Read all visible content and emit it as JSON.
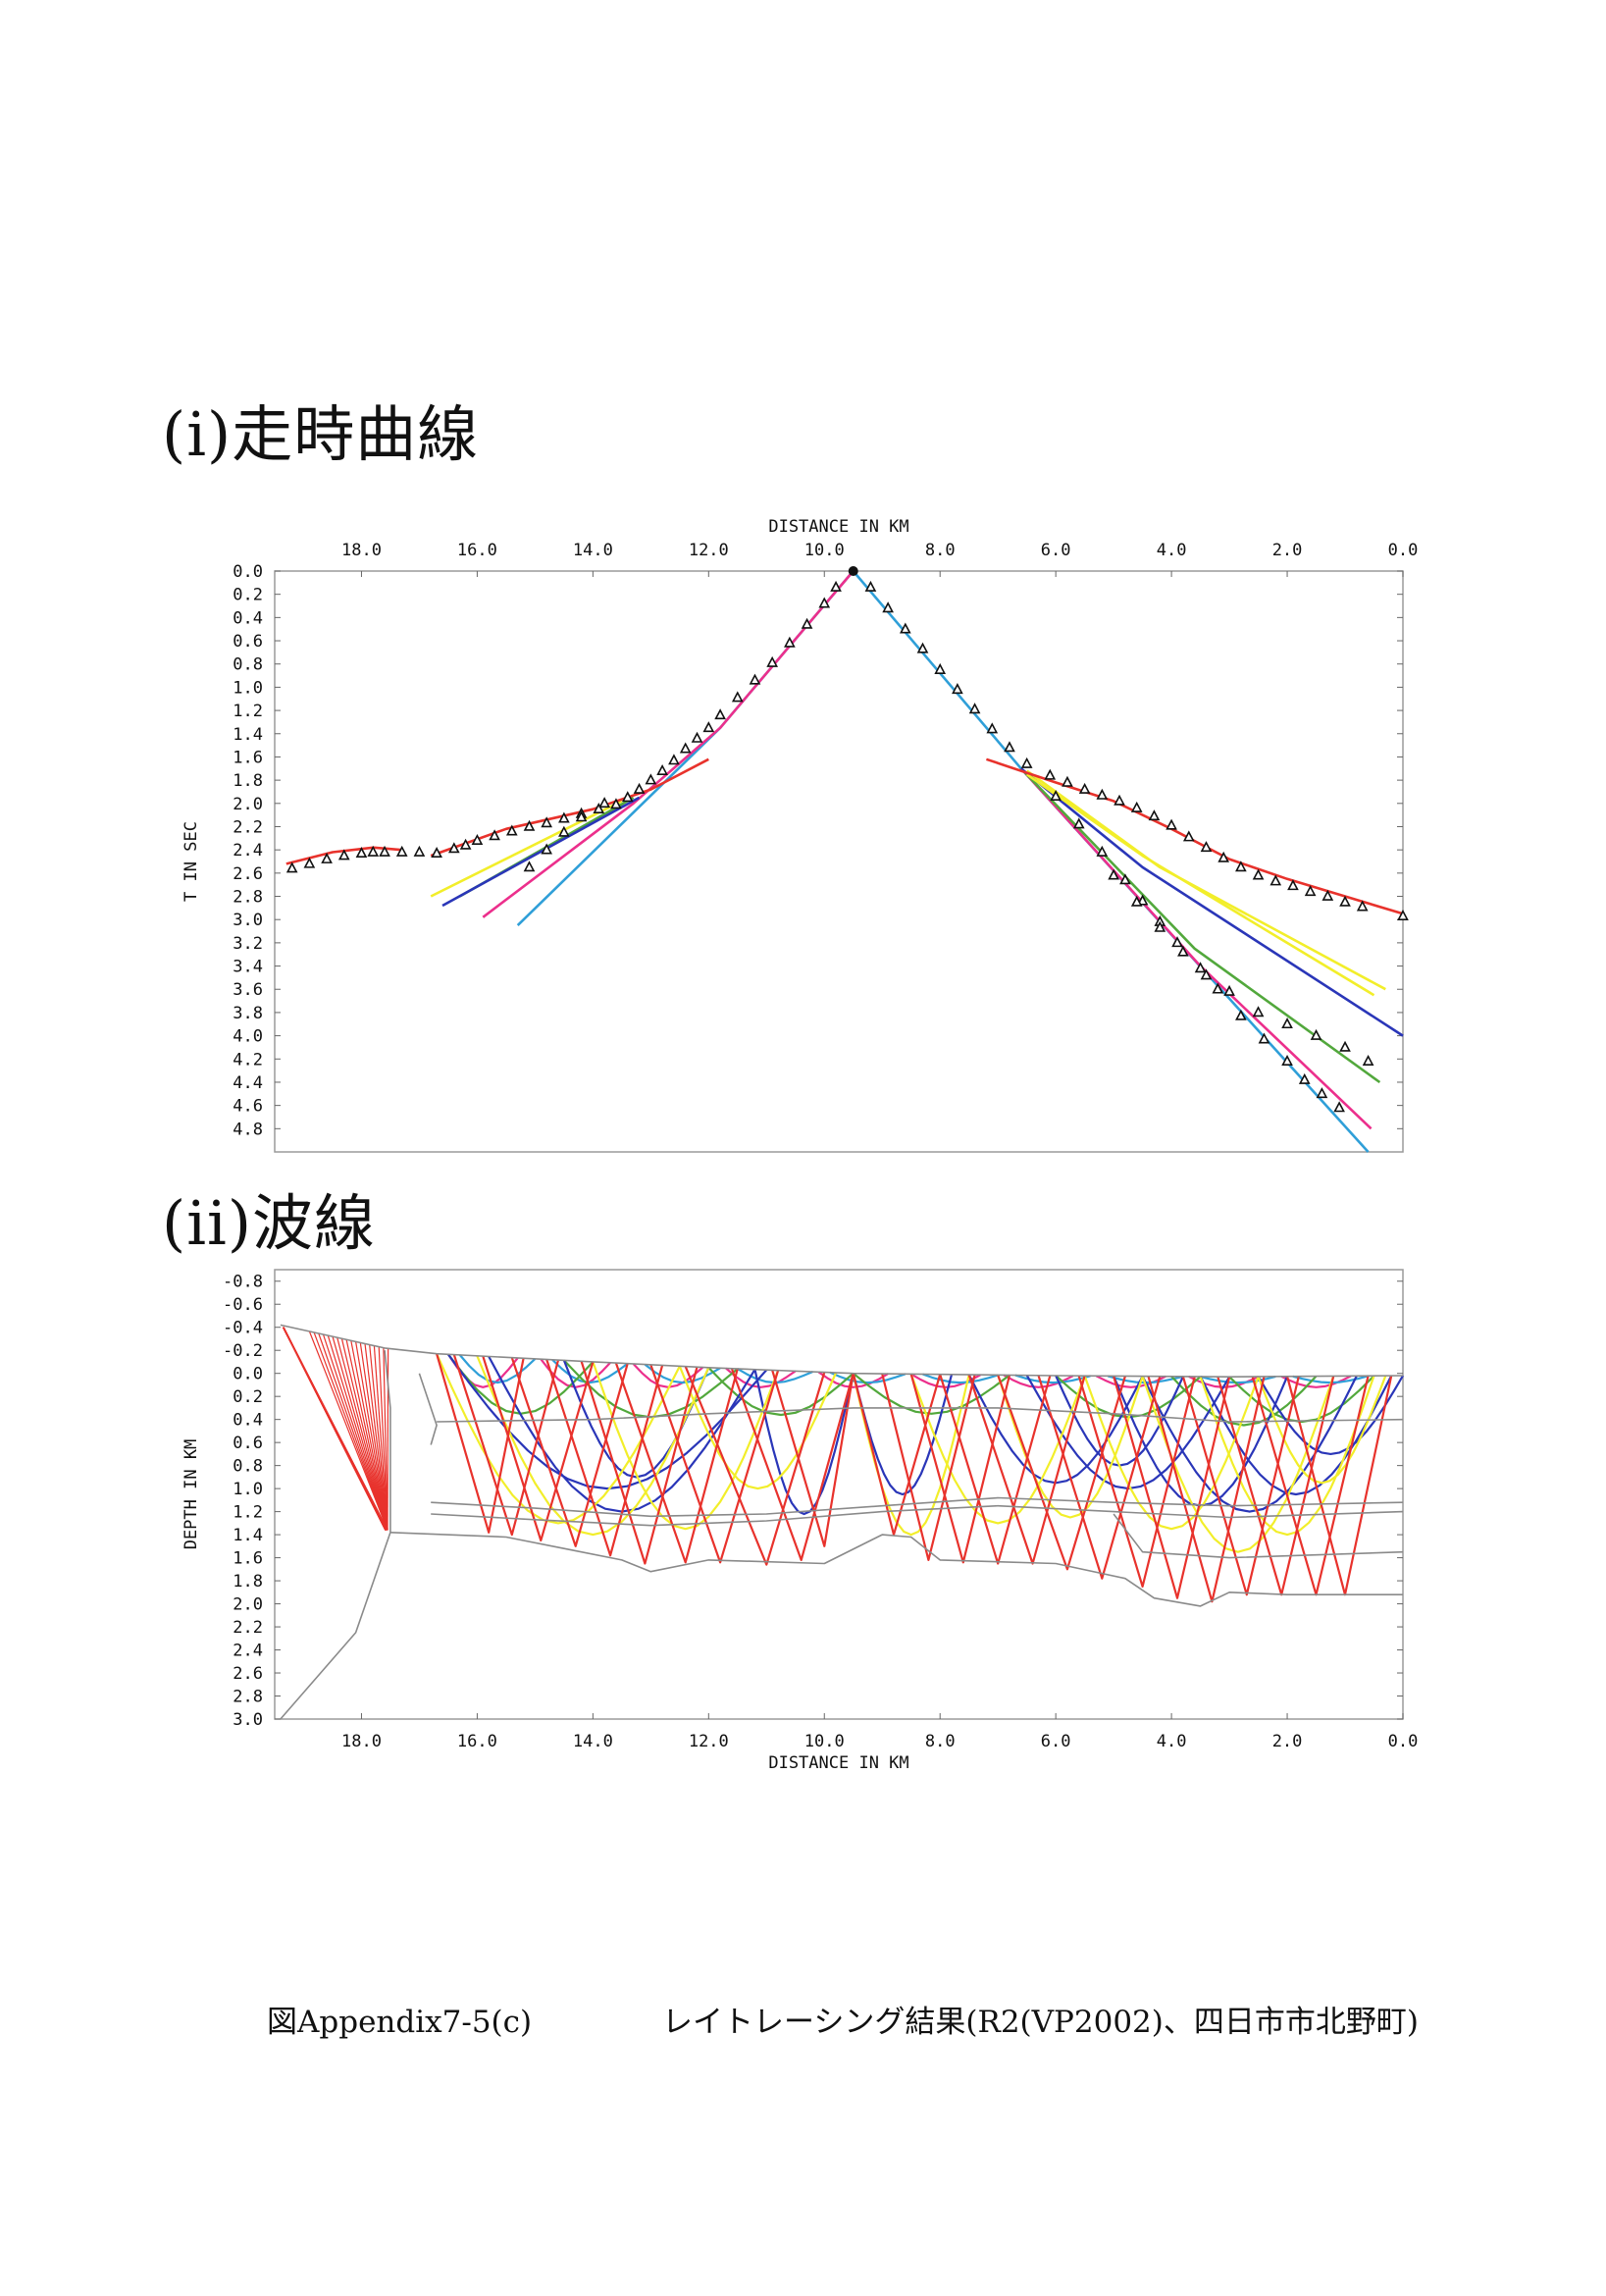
{
  "headings": {
    "section1": "(i)走時曲線",
    "section2": "(ii)波線"
  },
  "caption": {
    "label": "図Appendix7-5(c)",
    "text": "レイトレーシング結果(R2(VP2002)、四日市市北野町)"
  },
  "colors": {
    "red": "#e8322c",
    "yellow": "#f2ee2a",
    "green": "#52a83c",
    "blue": "#2a36b8",
    "magenta": "#ec2f8c",
    "cyan": "#2f9fd8",
    "boundary": "#8a8a8a",
    "frame": "#9a9a9a"
  },
  "chart_data": [
    {
      "type": "line",
      "name": "travel-time",
      "xlabel": "DISTANCE IN KM",
      "ylabel": "T IN SEC",
      "xlim": [
        19.5,
        0.0
      ],
      "ylim": [
        0.0,
        5.0
      ],
      "x_ticks": [
        "18.0",
        "16.0",
        "14.0",
        "12.0",
        "10.0",
        "8.0",
        "6.0",
        "4.0",
        "2.0",
        "0.0"
      ],
      "y_ticks": [
        "0.0",
        "0.2",
        "0.4",
        "0.6",
        "0.8",
        "1.0",
        "1.2",
        "1.4",
        "1.6",
        "1.8",
        "2.0",
        "2.2",
        "2.4",
        "2.6",
        "2.8",
        "3.0",
        "3.2",
        "3.4",
        "3.6",
        "3.8",
        "4.0",
        "4.2",
        "4.4",
        "4.6",
        "4.8"
      ],
      "shot_point": [
        9.5,
        0.0
      ],
      "series": [
        {
          "color": "cyan",
          "points": [
            [
              9.5,
              0.0
            ],
            [
              11.8,
              1.35
            ],
            [
              15.3,
              3.05
            ]
          ]
        },
        {
          "color": "cyan",
          "points": [
            [
              9.5,
              0.0
            ],
            [
              6.6,
              1.7
            ],
            [
              0.6,
              5.0
            ]
          ]
        },
        {
          "color": "magenta",
          "points": [
            [
              9.5,
              0.0
            ],
            [
              11.8,
              1.35
            ],
            [
              13.3,
              2.0
            ],
            [
              15.9,
              2.98
            ]
          ]
        },
        {
          "color": "magenta",
          "points": [
            [
              6.6,
              1.7
            ],
            [
              3.5,
              3.4
            ],
            [
              0.55,
              4.8
            ]
          ]
        },
        {
          "color": "green",
          "points": [
            [
              13.3,
              1.95
            ],
            [
              16.3,
              2.8
            ]
          ]
        },
        {
          "color": "green",
          "points": [
            [
              6.6,
              1.7
            ],
            [
              3.6,
              3.25
            ],
            [
              0.4,
              4.4
            ]
          ]
        },
        {
          "color": "blue",
          "points": [
            [
              13.2,
              1.95
            ],
            [
              16.6,
              2.88
            ]
          ]
        },
        {
          "color": "blue",
          "points": [
            [
              6.6,
              1.7
            ],
            [
              4.5,
              2.55
            ],
            [
              0.0,
              4.0
            ]
          ]
        },
        {
          "color": "yellow",
          "points": [
            [
              13.5,
              1.98
            ],
            [
              16.8,
              2.8
            ]
          ]
        },
        {
          "color": "yellow",
          "points": [
            [
              6.5,
              1.72
            ],
            [
              4.2,
              2.55
            ],
            [
              0.3,
              3.6
            ]
          ]
        },
        {
          "color": "yellow",
          "points": [
            [
              6.5,
              1.75
            ],
            [
              4.5,
              2.45
            ],
            [
              0.5,
              3.65
            ]
          ]
        },
        {
          "color": "red",
          "points": [
            [
              12.0,
              1.62
            ],
            [
              13.0,
              1.88
            ],
            [
              14.0,
              2.05
            ],
            [
              15.5,
              2.22
            ],
            [
              16.8,
              2.45
            ]
          ]
        },
        {
          "color": "red",
          "points": [
            [
              17.3,
              2.4
            ],
            [
              17.8,
              2.38
            ],
            [
              18.5,
              2.42
            ],
            [
              19.3,
              2.52
            ]
          ]
        },
        {
          "color": "red",
          "points": [
            [
              7.2,
              1.62
            ],
            [
              6.0,
              1.82
            ],
            [
              5.0,
              1.98
            ],
            [
              4.0,
              2.22
            ],
            [
              3.0,
              2.48
            ],
            [
              2.0,
              2.65
            ],
            [
              1.0,
              2.8
            ],
            [
              0.0,
              2.95
            ]
          ]
        }
      ],
      "observed_times": [
        [
          19.2,
          2.56
        ],
        [
          18.9,
          2.52
        ],
        [
          18.6,
          2.48
        ],
        [
          18.3,
          2.45
        ],
        [
          18.0,
          2.43
        ],
        [
          17.8,
          2.42
        ],
        [
          17.6,
          2.42
        ],
        [
          17.3,
          2.42
        ],
        [
          17.0,
          2.42
        ],
        [
          16.7,
          2.43
        ],
        [
          16.4,
          2.39
        ],
        [
          16.2,
          2.36
        ],
        [
          16.0,
          2.32
        ],
        [
          15.7,
          2.28
        ],
        [
          15.4,
          2.24
        ],
        [
          15.1,
          2.2
        ],
        [
          14.8,
          2.17
        ],
        [
          14.5,
          2.13
        ],
        [
          14.2,
          2.09
        ],
        [
          13.9,
          2.05
        ],
        [
          13.6,
          2.01
        ],
        [
          13.4,
          1.95
        ],
        [
          13.2,
          1.88
        ],
        [
          13.0,
          1.8
        ],
        [
          12.8,
          1.72
        ],
        [
          12.6,
          1.63
        ],
        [
          12.4,
          1.53
        ],
        [
          12.2,
          1.44
        ],
        [
          12.0,
          1.35
        ],
        [
          11.8,
          1.24
        ],
        [
          11.5,
          1.09
        ],
        [
          11.2,
          0.94
        ],
        [
          10.9,
          0.79
        ],
        [
          10.6,
          0.62
        ],
        [
          10.3,
          0.46
        ],
        [
          10.0,
          0.28
        ],
        [
          9.8,
          0.14
        ],
        [
          15.1,
          2.55
        ],
        [
          14.8,
          2.4
        ],
        [
          14.5,
          2.25
        ],
        [
          14.2,
          2.12
        ],
        [
          13.8,
          2.0
        ],
        [
          9.2,
          0.14
        ],
        [
          8.9,
          0.32
        ],
        [
          8.6,
          0.5
        ],
        [
          8.3,
          0.67
        ],
        [
          8.0,
          0.85
        ],
        [
          7.7,
          1.02
        ],
        [
          7.4,
          1.19
        ],
        [
          7.1,
          1.36
        ],
        [
          6.8,
          1.52
        ],
        [
          6.5,
          1.66
        ],
        [
          6.1,
          1.76
        ],
        [
          5.8,
          1.82
        ],
        [
          5.5,
          1.88
        ],
        [
          5.2,
          1.93
        ],
        [
          4.9,
          1.98
        ],
        [
          4.6,
          2.04
        ],
        [
          4.3,
          2.11
        ],
        [
          4.0,
          2.19
        ],
        [
          3.7,
          2.29
        ],
        [
          3.4,
          2.38
        ],
        [
          3.1,
          2.47
        ],
        [
          2.8,
          2.55
        ],
        [
          2.5,
          2.62
        ],
        [
          2.2,
          2.67
        ],
        [
          1.9,
          2.71
        ],
        [
          1.6,
          2.76
        ],
        [
          1.3,
          2.8
        ],
        [
          1.0,
          2.85
        ],
        [
          0.7,
          2.89
        ],
        [
          0.0,
          2.97
        ],
        [
          6.0,
          1.94
        ],
        [
          5.6,
          2.18
        ],
        [
          5.2,
          2.42
        ],
        [
          4.8,
          2.66
        ],
        [
          4.5,
          2.84
        ],
        [
          4.2,
          3.02
        ],
        [
          3.9,
          3.2
        ],
        [
          3.5,
          3.42
        ],
        [
          3.2,
          3.6
        ],
        [
          2.8,
          3.83
        ],
        [
          2.4,
          4.03
        ],
        [
          2.0,
          4.22
        ],
        [
          1.7,
          4.38
        ],
        [
          1.4,
          4.5
        ],
        [
          1.1,
          4.62
        ],
        [
          5.0,
          2.62
        ],
        [
          4.6,
          2.85
        ],
        [
          4.2,
          3.07
        ],
        [
          3.8,
          3.28
        ],
        [
          3.4,
          3.48
        ],
        [
          3.0,
          3.62
        ],
        [
          2.5,
          3.8
        ],
        [
          2.0,
          3.9
        ],
        [
          1.5,
          4.0
        ],
        [
          1.0,
          4.1
        ],
        [
          0.6,
          4.22
        ]
      ]
    },
    {
      "type": "line",
      "name": "ray-paths",
      "xlabel": "DISTANCE IN KM",
      "ylabel": "DEPTH IN KM",
      "xlim": [
        19.5,
        0.0
      ],
      "ylim": [
        -0.9,
        3.0
      ],
      "x_ticks": [
        "18.0",
        "16.0",
        "14.0",
        "12.0",
        "10.0",
        "8.0",
        "6.0",
        "4.0",
        "2.0",
        "0.0"
      ],
      "y_ticks": [
        "-0.8",
        "-0.6",
        "-0.4",
        "-0.2",
        "0.0",
        "0.2",
        "0.4",
        "0.6",
        "0.8",
        "1.0",
        "1.2",
        "1.4",
        "1.6",
        "1.8",
        "2.0",
        "2.2",
        "2.4",
        "2.6",
        "2.8",
        "3.0"
      ],
      "surface": [
        [
          19.4,
          -0.42
        ],
        [
          18.5,
          -0.32
        ],
        [
          17.6,
          -0.22
        ],
        [
          16.7,
          -0.17
        ],
        [
          14.0,
          -0.1
        ],
        [
          12.0,
          -0.05
        ],
        [
          9.5,
          0.0
        ],
        [
          6.0,
          0.02
        ],
        [
          3.0,
          0.03
        ],
        [
          0.0,
          0.02
        ]
      ],
      "boundaries": [
        [
          [
            17.5,
            1.38
          ],
          [
            18.1,
            2.25
          ],
          [
            19.4,
            3.0
          ]
        ],
        [
          [
            17.5,
            1.38
          ],
          [
            17.5,
            0.3
          ],
          [
            17.6,
            -0.2
          ]
        ],
        [
          [
            16.8,
            0.62
          ],
          [
            16.7,
            0.45
          ],
          [
            17.0,
            0.0
          ]
        ],
        [
          [
            16.7,
            0.42
          ],
          [
            14.0,
            0.4
          ],
          [
            12.0,
            0.35
          ],
          [
            9.5,
            0.3
          ],
          [
            7.0,
            0.3
          ],
          [
            5.0,
            0.35
          ],
          [
            3.0,
            0.42
          ],
          [
            0.0,
            0.4
          ]
        ],
        [
          [
            16.8,
            1.12
          ],
          [
            15.0,
            1.17
          ],
          [
            13.0,
            1.24
          ],
          [
            11.0,
            1.22
          ],
          [
            9.0,
            1.15
          ],
          [
            7.0,
            1.08
          ],
          [
            5.0,
            1.12
          ],
          [
            3.0,
            1.15
          ],
          [
            0.0,
            1.12
          ]
        ],
        [
          [
            16.8,
            1.22
          ],
          [
            15.0,
            1.27
          ],
          [
            13.0,
            1.32
          ],
          [
            11.0,
            1.28
          ],
          [
            9.0,
            1.2
          ],
          [
            7.0,
            1.15
          ],
          [
            5.0,
            1.2
          ],
          [
            3.0,
            1.25
          ],
          [
            0.0,
            1.2
          ]
        ],
        [
          [
            17.5,
            1.38
          ],
          [
            15.5,
            1.42
          ],
          [
            14.5,
            1.52
          ],
          [
            13.5,
            1.62
          ],
          [
            13.0,
            1.72
          ],
          [
            12.0,
            1.62
          ],
          [
            10.0,
            1.65
          ],
          [
            9.0,
            1.4
          ],
          [
            8.5,
            1.42
          ],
          [
            8.0,
            1.62
          ],
          [
            6.0,
            1.65
          ],
          [
            4.8,
            1.78
          ],
          [
            4.3,
            1.95
          ],
          [
            3.5,
            2.02
          ],
          [
            3.0,
            1.9
          ],
          [
            2.0,
            1.92
          ],
          [
            0.0,
            1.92
          ]
        ],
        [
          [
            5.0,
            1.22
          ],
          [
            4.5,
            1.55
          ],
          [
            3.0,
            1.6
          ],
          [
            0.0,
            1.55
          ]
        ]
      ]
    }
  ]
}
